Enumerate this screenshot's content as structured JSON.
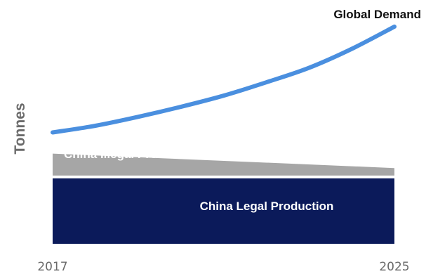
{
  "chart_data": {
    "type": "area",
    "ylabel": "Tonnes",
    "x_ticks": [
      "2017",
      "2025"
    ],
    "series": [
      {
        "name": "Global Demand",
        "kind": "line",
        "color": "#4a8fdf",
        "x": [
          2017,
          2018,
          2019,
          2020,
          2021,
          2022,
          2023,
          2024,
          2025
        ],
        "y": [
          100,
          106,
          114,
          123,
          133,
          145,
          158,
          175,
          195
        ]
      },
      {
        "name": "China Illegal Production",
        "kind": "area",
        "color": "#a6a6a6",
        "x": [
          2017,
          2025
        ],
        "y_lower": [
          60,
          60
        ],
        "y_upper": [
          81,
          68
        ]
      },
      {
        "name": "China Legal Production",
        "kind": "area",
        "color": "#0b1a5a",
        "x": [
          2017,
          2025
        ],
        "y_lower": [
          0,
          0
        ],
        "y_upper": [
          60,
          60
        ]
      }
    ]
  }
}
